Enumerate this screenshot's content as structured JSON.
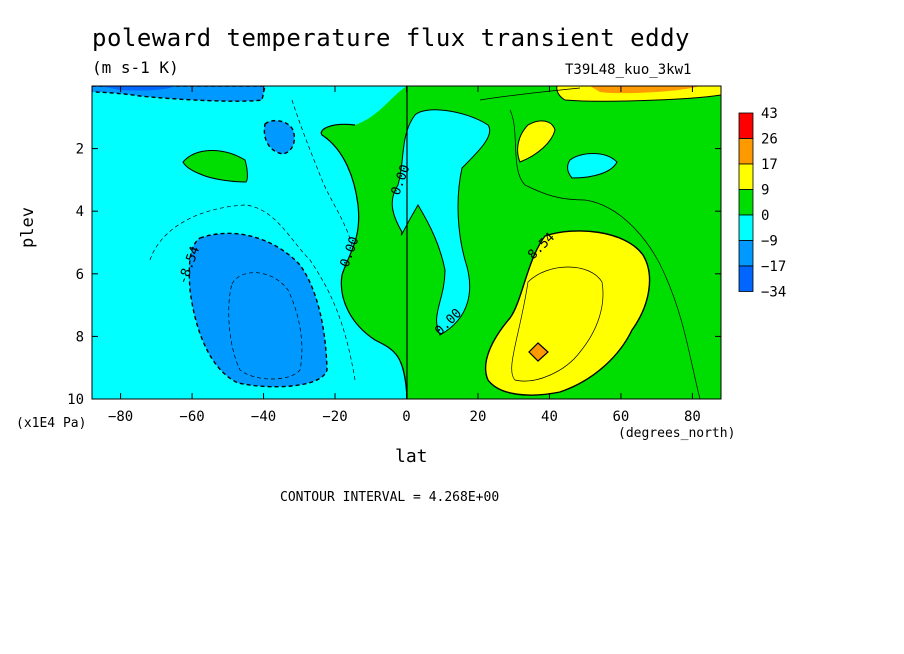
{
  "chart_data": {
    "type": "heatmap",
    "title": "poleward temperature flux transient eddy",
    "units": "(m s-1 K)",
    "dataset": "T39L48_kuo_3kw1",
    "xlabel": "lat",
    "xunits": "(degrees_north)",
    "ylabel": "plev",
    "yunits": "(x1E4 Pa)",
    "xlim": [
      -88,
      88
    ],
    "ylim": [
      10,
      0
    ],
    "xticks": [
      "-80",
      "-60",
      "-40",
      "-20",
      "0",
      "20",
      "40",
      "60",
      "80"
    ],
    "yticks": [
      "2",
      "4",
      "6",
      "8",
      "10"
    ],
    "contour_interval": "CONTOUR INTERVAL = 4.268E+00",
    "contour_labels": [
      "-8.54",
      "0.00",
      "0.00",
      "0.00",
      "8.54"
    ],
    "colorbar": {
      "labels": [
        "43",
        "26",
        "17",
        "9",
        "0",
        "-9",
        "-17",
        "-34"
      ],
      "colors": [
        "#ff0000",
        "#ff9900",
        "#ffff00",
        "#00dd00",
        "#00ffff",
        "#0099ff",
        "#0066ff"
      ]
    }
  },
  "colors": {
    "pos_0_9": "#00dd00",
    "neg_0_9": "#00ffff",
    "neg_9_17": "#0099ff",
    "neg_17_34": "#0066ff",
    "pos_9_17": "#ffff00",
    "pos_17_26": "#ff9900",
    "pos_26_43": "#ff0000"
  }
}
